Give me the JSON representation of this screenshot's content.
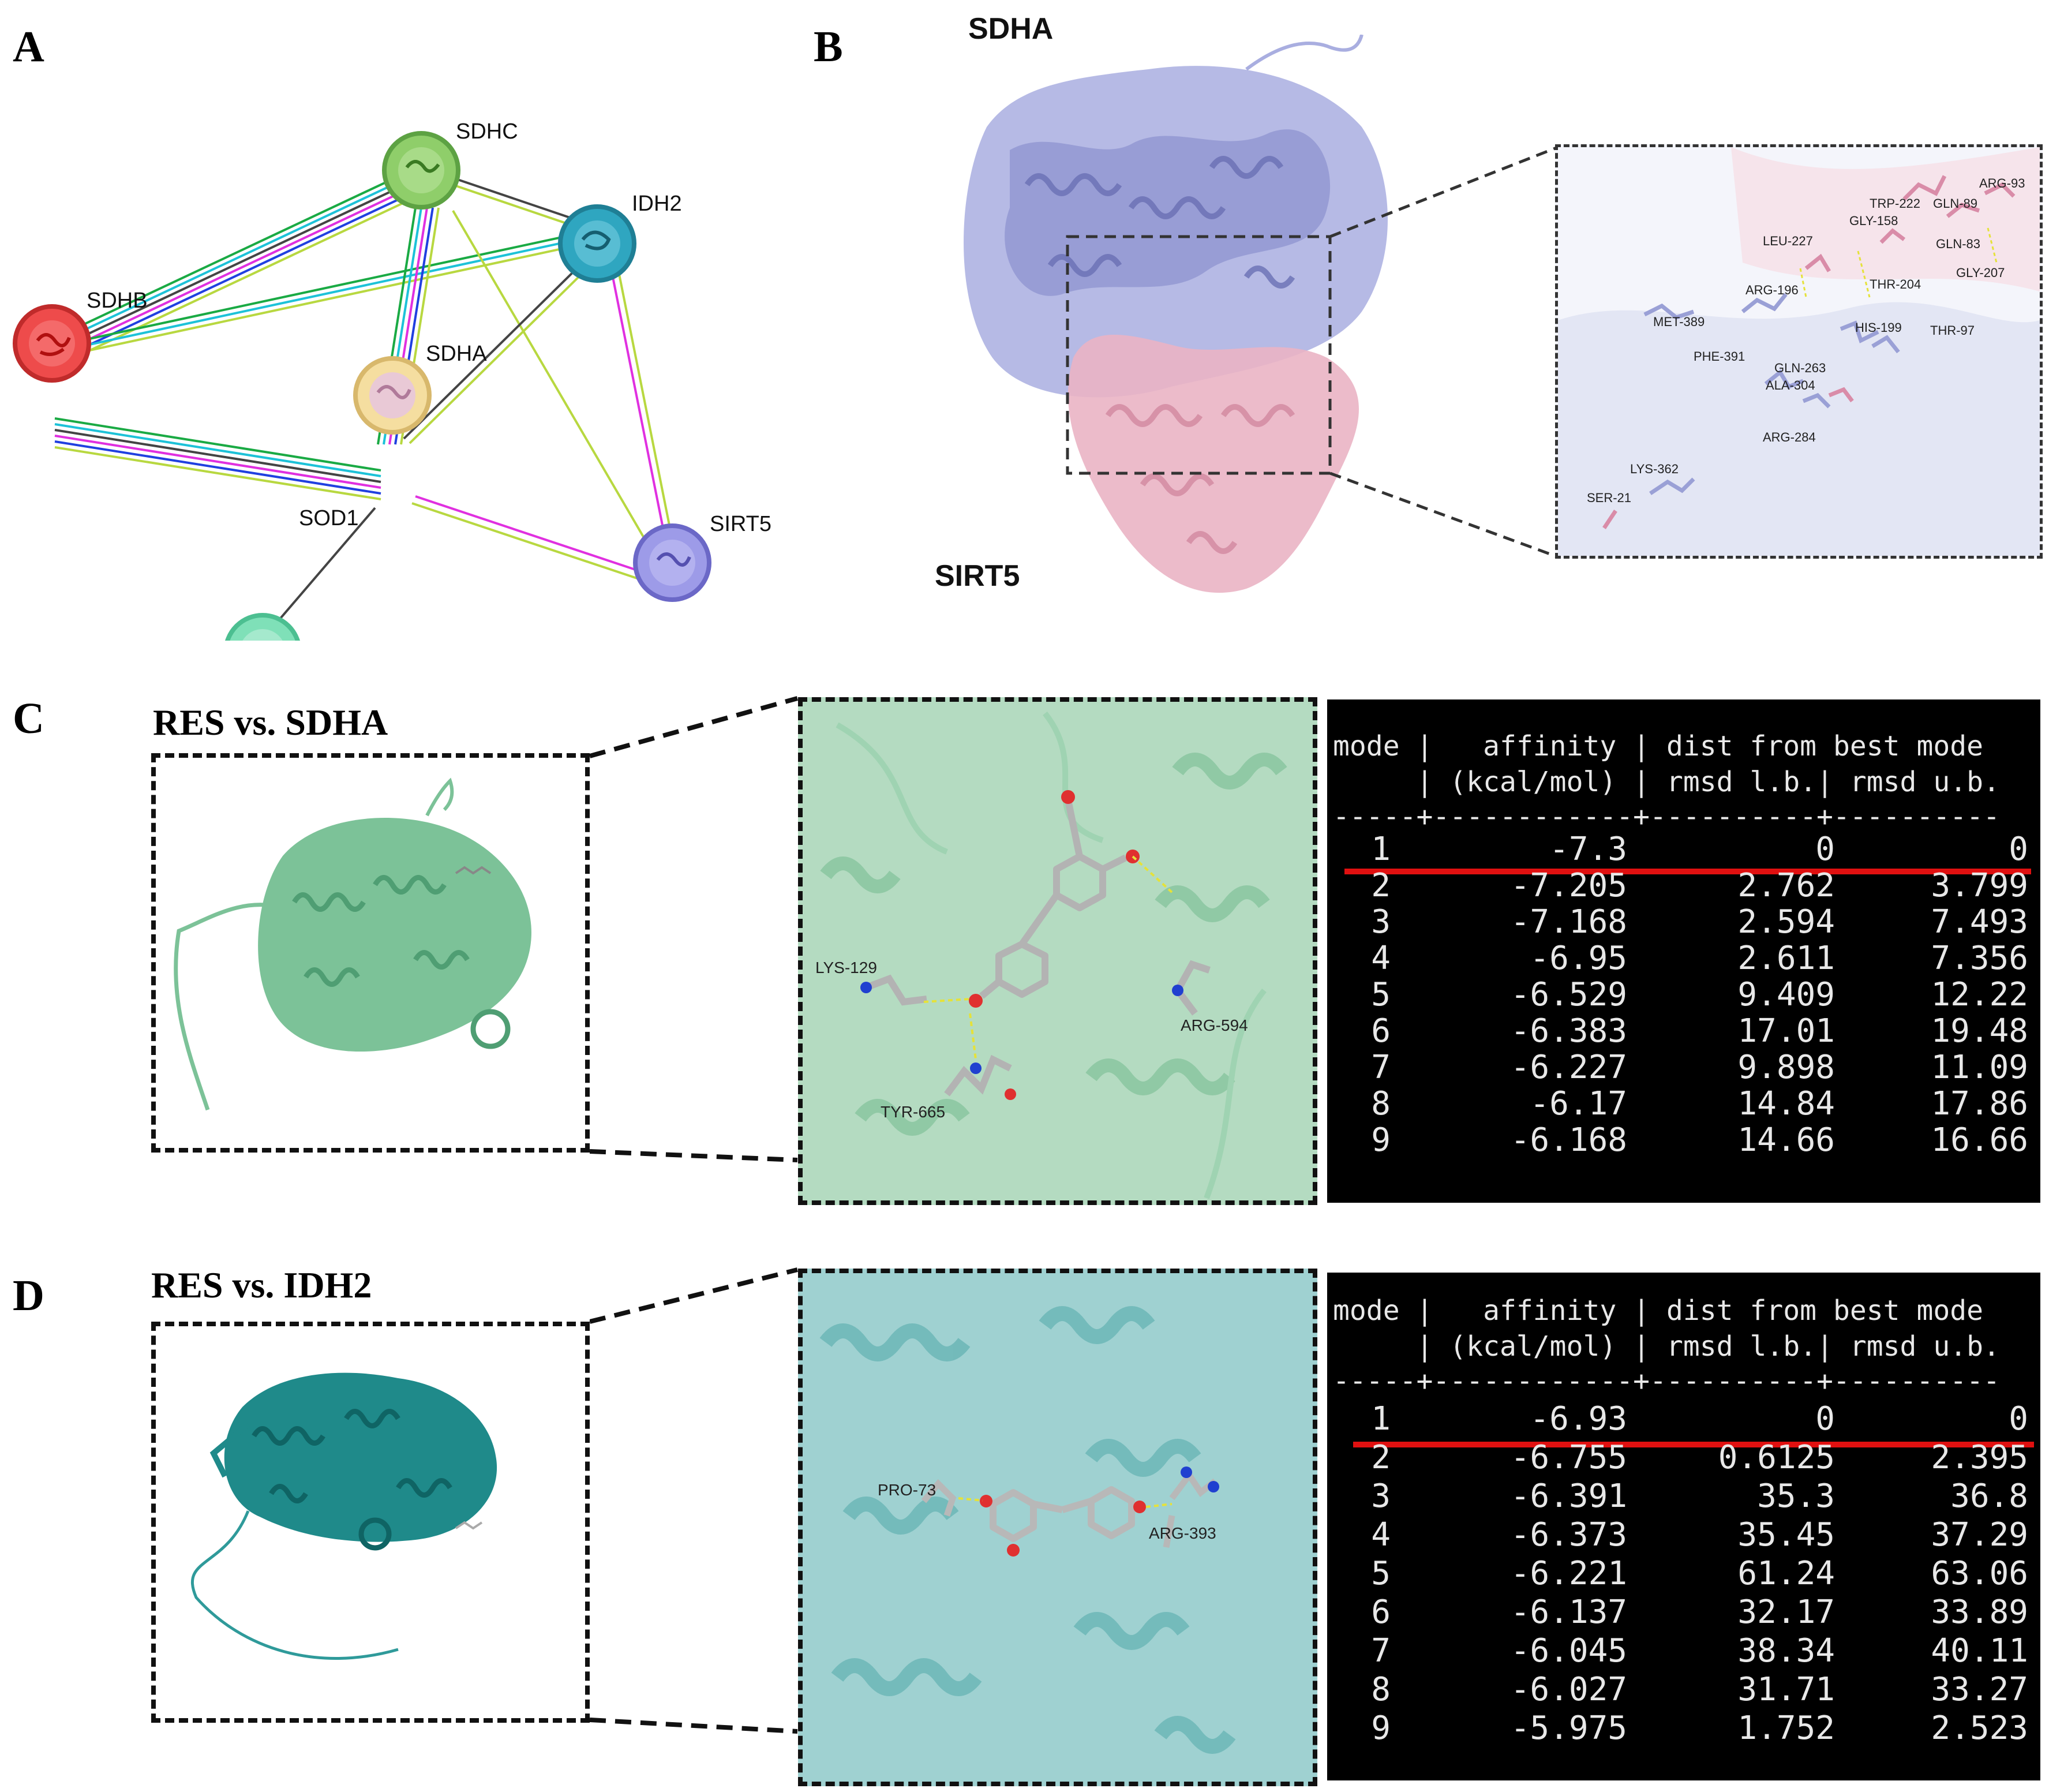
{
  "panels": {
    "A": {
      "letter": "A"
    },
    "B": {
      "letter": "B"
    },
    "C": {
      "letter": "C",
      "title": "RES vs. SDHA"
    },
    "D": {
      "letter": "D",
      "title": "RES vs. IDH2"
    }
  },
  "network": {
    "nodes": [
      {
        "id": "SDHC",
        "label": "SDHC",
        "color": "#8fce6a"
      },
      {
        "id": "IDH2",
        "label": "IDH2",
        "color": "#2fa6c0"
      },
      {
        "id": "SDHB",
        "label": "SDHB",
        "color": "#ee4b4b"
      },
      {
        "id": "SDHA",
        "label": "SDHA",
        "color": "#f5dea0"
      },
      {
        "id": "SOD1",
        "label": "SOD1",
        "color": "#7fe0b8"
      },
      {
        "id": "SIRT5",
        "label": "SIRT5",
        "color": "#9d9be8"
      }
    ]
  },
  "panel_b": {
    "protein_top": "SDHA",
    "protein_bottom": "SIRT5",
    "colors": {
      "sdha": "#a9aee0",
      "sirt5": "#eab4c4"
    },
    "residues": [
      "ARG-93",
      "TRP-222",
      "GLN-89",
      "GLY-158",
      "LEU-227",
      "GLN-83",
      "GLY-207",
      "THR-204",
      "ARG-196",
      "MET-389",
      "HIS-199",
      "THR-97",
      "PHE-391",
      "GLN-263",
      "ALA-304",
      "ARG-284",
      "LYS-362",
      "SER-21"
    ]
  },
  "panel_c": {
    "residues": [
      "LYS-129",
      "ARG-594",
      "TYR-665"
    ],
    "color": "#7cc298",
    "table": {
      "header_line1": "mode |   affinity | dist from best mode",
      "header_line2": "     | (kcal/mol) | rmsd l.b.| rmsd u.b.",
      "separator": "-----+------------+----------+----------",
      "rows": [
        [
          "1",
          "-7.3",
          "0",
          "0"
        ],
        [
          "2",
          "-7.205",
          "2.762",
          "3.799"
        ],
        [
          "3",
          "-7.168",
          "2.594",
          "7.493"
        ],
        [
          "4",
          "-6.95",
          "2.611",
          "7.356"
        ],
        [
          "5",
          "-6.529",
          "9.409",
          "12.22"
        ],
        [
          "6",
          "-6.383",
          "17.01",
          "19.48"
        ],
        [
          "7",
          "-6.227",
          "9.898",
          "11.09"
        ],
        [
          "8",
          "-6.17",
          "14.84",
          "17.86"
        ],
        [
          "9",
          "-6.168",
          "14.66",
          "16.66"
        ]
      ]
    }
  },
  "panel_d": {
    "residues": [
      "PRO-73",
      "ARG-393"
    ],
    "color": "#2f9a9a",
    "table": {
      "header_line1": "mode |   affinity | dist from best mode",
      "header_line2": "     | (kcal/mol) | rmsd l.b.| rmsd u.b.",
      "separator": "-----+------------+----------+----------",
      "rows": [
        [
          "1",
          "-6.93",
          "0",
          "0"
        ],
        [
          "2",
          "-6.755",
          "0.6125",
          "2.395"
        ],
        [
          "3",
          "-6.391",
          "35.3",
          "36.8"
        ],
        [
          "4",
          "-6.373",
          "35.45",
          "37.29"
        ],
        [
          "5",
          "-6.221",
          "61.24",
          "63.06"
        ],
        [
          "6",
          "-6.137",
          "32.17",
          "33.89"
        ],
        [
          "7",
          "-6.045",
          "38.34",
          "40.11"
        ],
        [
          "8",
          "-6.027",
          "31.71",
          "33.27"
        ],
        [
          "9",
          "-5.975",
          "1.752",
          "2.523"
        ]
      ]
    }
  }
}
